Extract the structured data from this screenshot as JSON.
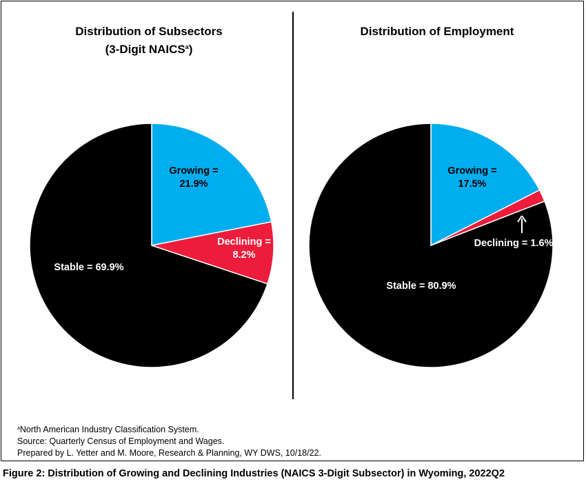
{
  "chart_data": [
    {
      "type": "pie",
      "title": "Distribution of Subsectors",
      "subtitle": "(3-Digit NAICS",
      "subtitle_sup": "a",
      "subtitle_tail": ")",
      "slices": [
        {
          "name": "Growing",
          "value": 21.9,
          "label": [
            "Growing =",
            "21.9%"
          ],
          "color": "#00AEEF",
          "label_color": "#000000"
        },
        {
          "name": "Declining",
          "value": 8.2,
          "label": [
            "Declining =",
            "8.2%"
          ],
          "color": "#ED1C3A",
          "label_color": "#FFFFFF"
        },
        {
          "name": "Stable",
          "value": 69.9,
          "label": [
            "Stable = 69.9%"
          ],
          "color": "#000000",
          "label_color": "#FFFFFF"
        }
      ]
    },
    {
      "type": "pie",
      "title": "Distribution of Employment",
      "slices": [
        {
          "name": "Growing",
          "value": 17.5,
          "label": [
            "Growing =",
            "17.5%"
          ],
          "color": "#00AEEF",
          "label_color": "#000000"
        },
        {
          "name": "Declining",
          "value": 1.6,
          "label": [
            "Declining = 1.6%"
          ],
          "color": "#ED1C3A",
          "label_color": "#FFFFFF"
        },
        {
          "name": "Stable",
          "value": 80.9,
          "label": [
            "Stable = 80.9%"
          ],
          "color": "#000000",
          "label_color": "#FFFFFF"
        }
      ]
    }
  ],
  "notes": {
    "footnote_marker": "a",
    "footnote": "North American Industry Classification System.",
    "source": "Source: Quarterly Census of Employment and Wages.",
    "prepared": "Prepared by L. Yetter and M. Moore, Research & Planning, WY DWS, 10/18/22."
  },
  "caption": "Figure 2: Distribution of Growing and Declining Industries (NAICS 3-Digit Subsector) in Wyoming, 2022Q2"
}
